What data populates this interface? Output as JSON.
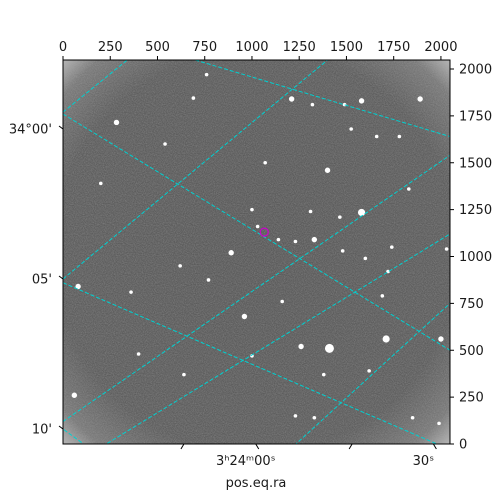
{
  "chart_data": {
    "type": "image",
    "xlabel": "pos.eq.ra",
    "pixel_axes": {
      "x_range": [
        0,
        2048
      ],
      "y_range": [
        0,
        2048
      ],
      "top_ticks": [
        0,
        250,
        500,
        750,
        1000,
        1250,
        1500,
        1750,
        2000
      ],
      "right_ticks": [
        0,
        250,
        500,
        750,
        1000,
        1250,
        1500,
        1750,
        2000
      ]
    },
    "ra_tick_labels": [
      {
        "label": "3ʰ24ᵐ00ˢ",
        "x": 1020
      },
      {
        "label": "30ˢ",
        "x": 1960
      }
    ],
    "dec_tick_labels": [
      {
        "label": "34°00'",
        "y": 1680
      },
      {
        "label": "05'",
        "y": 880
      },
      {
        "label": "10'",
        "y": 80
      }
    ],
    "grid_lines": {
      "color": "#00d0d0",
      "style": "dashed",
      "lines": [
        [
          [
            0,
            1770
          ],
          [
            340,
            2048
          ]
        ],
        [
          [
            0,
            880
          ],
          [
            1400,
            2048
          ]
        ],
        [
          [
            0,
            120
          ],
          [
            2048,
            1540
          ]
        ],
        [
          [
            180,
            -30
          ],
          [
            2048,
            1120
          ]
        ],
        [
          [
            1200,
            -30
          ],
          [
            2048,
            750
          ]
        ],
        [
          [
            700,
            2048
          ],
          [
            2048,
            1640
          ]
        ],
        [
          [
            0,
            1760
          ],
          [
            2048,
            500
          ]
        ],
        [
          [
            0,
            860
          ],
          [
            2048,
            -30
          ]
        ],
        [
          [
            150,
            -30
          ],
          [
            0,
            80
          ]
        ]
      ]
    },
    "marker": {
      "shape": "circle",
      "color": "#cc00cc",
      "x": 1065,
      "y": 1130
    },
    "stars": [
      [
        283,
        1715,
        3
      ],
      [
        540,
        1600,
        2
      ],
      [
        690,
        1845,
        2
      ],
      [
        760,
        1970,
        2
      ],
      [
        1210,
        1840,
        3
      ],
      [
        1320,
        1810,
        2
      ],
      [
        1490,
        1810,
        2
      ],
      [
        1580,
        1830,
        3
      ],
      [
        1890,
        1840,
        3
      ],
      [
        1525,
        1680,
        2
      ],
      [
        1660,
        1640,
        2
      ],
      [
        1780,
        1640,
        2
      ],
      [
        1400,
        1460,
        3
      ],
      [
        1830,
        1360,
        2
      ],
      [
        1580,
        1235,
        4
      ],
      [
        1465,
        1210,
        2
      ],
      [
        1310,
        1240,
        2
      ],
      [
        1000,
        1250,
        2
      ],
      [
        1030,
        1160,
        2
      ],
      [
        890,
        1020,
        3
      ],
      [
        1140,
        1090,
        2
      ],
      [
        1230,
        1080,
        2
      ],
      [
        1330,
        1090,
        3
      ],
      [
        1480,
        1030,
        2
      ],
      [
        1600,
        990,
        2
      ],
      [
        2030,
        1040,
        2
      ],
      [
        80,
        840,
        3
      ],
      [
        360,
        810,
        2
      ],
      [
        620,
        950,
        2
      ],
      [
        770,
        875,
        2
      ],
      [
        960,
        680,
        3
      ],
      [
        1160,
        760,
        2
      ],
      [
        1690,
        790,
        2
      ],
      [
        1720,
        920,
        2
      ],
      [
        400,
        480,
        2
      ],
      [
        1000,
        470,
        2
      ],
      [
        1410,
        510,
        5
      ],
      [
        1260,
        520,
        3
      ],
      [
        1710,
        560,
        4
      ],
      [
        1380,
        370,
        2
      ],
      [
        1620,
        390,
        2
      ],
      [
        2000,
        560,
        3
      ],
      [
        1990,
        110,
        2
      ],
      [
        1850,
        140,
        2
      ],
      [
        60,
        260,
        3
      ],
      [
        1230,
        150,
        2
      ],
      [
        1330,
        140,
        2
      ],
      [
        640,
        370,
        2
      ],
      [
        200,
        1390,
        2
      ],
      [
        1070,
        1500,
        2
      ],
      [
        1740,
        1050,
        2
      ]
    ]
  }
}
